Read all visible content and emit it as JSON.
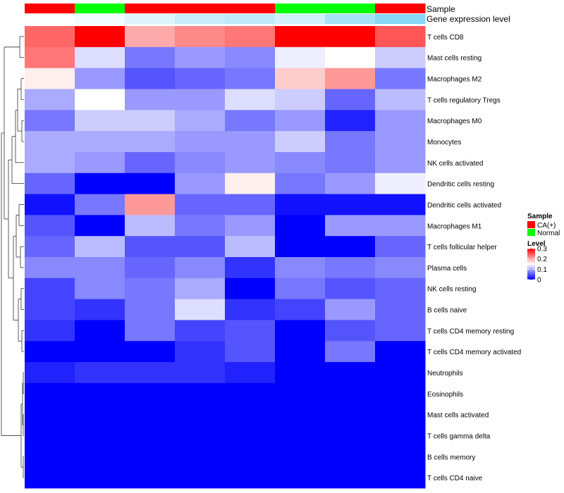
{
  "chart_data": {
    "type": "heatmap",
    "annotation_labels": [
      "Sample",
      "Gene expression level"
    ],
    "sample_groups": [
      "CA(+)",
      "Normal",
      "CA(+)",
      "CA(+)",
      "CA(+)",
      "Normal",
      "Normal",
      "CA(+)"
    ],
    "gene_expression_level": [
      0.98,
      0.92,
      0.8,
      0.66,
      0.6,
      0.72,
      0.45,
      0.25
    ],
    "rows": [
      "T cells CD8",
      "Mast cells resting",
      "Macrophages M2",
      "T cells regulatory  Tregs",
      "Macrophages M0",
      "Monocytes",
      "NK cells activated",
      "Dendritic cells resting",
      "Dendritic cells activated",
      "Macrophages M1",
      "T cells follicular helper",
      "Plasma cells",
      "NK cells resting",
      "B cells naive",
      "T cells CD4 memory resting",
      "T cells CD4 memory activated",
      "Neutrophils",
      "Eosinophils",
      "Mast cells activated",
      "T cells gamma delta",
      "B cells memory",
      "T cells CD4 naive"
    ],
    "values": [
      [
        0.24,
        0.3,
        0.2,
        0.22,
        0.23,
        0.3,
        0.3,
        0.25
      ],
      [
        0.23,
        0.13,
        0.07,
        0.09,
        0.08,
        0.14,
        0.15,
        0.12
      ],
      [
        0.16,
        0.09,
        0.05,
        0.06,
        0.07,
        0.18,
        0.21,
        0.07
      ],
      [
        0.1,
        0.15,
        0.09,
        0.09,
        0.13,
        0.12,
        0.06,
        0.11
      ],
      [
        0.07,
        0.12,
        0.12,
        0.1,
        0.07,
        0.09,
        0.02,
        0.09
      ],
      [
        0.1,
        0.1,
        0.1,
        0.09,
        0.09,
        0.12,
        0.07,
        0.09
      ],
      [
        0.1,
        0.09,
        0.06,
        0.08,
        0.09,
        0.08,
        0.07,
        0.09
      ],
      [
        0.06,
        0.0,
        0.0,
        0.09,
        0.16,
        0.07,
        0.09,
        0.14
      ],
      [
        0.01,
        0.07,
        0.21,
        0.06,
        0.06,
        0.01,
        0.01,
        0.01
      ],
      [
        0.05,
        0.0,
        0.11,
        0.07,
        0.09,
        0.0,
        0.09,
        0.09
      ],
      [
        0.06,
        0.11,
        0.05,
        0.05,
        0.11,
        0.0,
        0.0,
        0.06
      ],
      [
        0.08,
        0.08,
        0.06,
        0.08,
        0.03,
        0.08,
        0.07,
        0.08
      ],
      [
        0.04,
        0.08,
        0.07,
        0.1,
        0.0,
        0.07,
        0.05,
        0.06
      ],
      [
        0.04,
        0.03,
        0.07,
        0.13,
        0.03,
        0.04,
        0.09,
        0.06
      ],
      [
        0.03,
        0.0,
        0.07,
        0.04,
        0.05,
        0.0,
        0.05,
        0.06
      ],
      [
        0.0,
        0.0,
        0.0,
        0.03,
        0.05,
        0.0,
        0.07,
        0.0
      ],
      [
        0.02,
        0.03,
        0.03,
        0.03,
        0.02,
        0.0,
        0.0,
        0.0
      ],
      [
        0.0,
        0.0,
        0.0,
        0.0,
        0.0,
        0.0,
        0.0,
        0.0
      ],
      [
        0.0,
        0.0,
        0.0,
        0.0,
        0.0,
        0.0,
        0.0,
        0.0
      ],
      [
        0.0,
        0.0,
        0.0,
        0.0,
        0.0,
        0.0,
        0.0,
        0.0
      ],
      [
        0.0,
        0.0,
        0.0,
        0.0,
        0.0,
        0.0,
        0.0,
        0.0
      ],
      [
        0.0,
        0.0,
        0.0,
        0.0,
        0.0,
        0.0,
        0.0,
        0.0
      ]
    ],
    "color_scale": {
      "low": "#0000FF",
      "mid": "#FFFFFF",
      "high": "#FF0000",
      "min": 0,
      "mid_value": 0.15,
      "max": 0.3
    },
    "legend": {
      "sample_title": "Sample",
      "sample_entries": [
        {
          "label": "CA(+)",
          "color": "#FF0000"
        },
        {
          "label": "Normal",
          "color": "#00FF00"
        }
      ],
      "level_title": "Level",
      "level_ticks": [
        "0.3",
        "0.2",
        "0.1",
        "0"
      ],
      "level_tick_values": [
        0.3,
        0.2,
        0.1,
        0
      ]
    },
    "gene_expression_colors": {
      "low": "#5BC8F0",
      "high": "#FFFFFF"
    }
  }
}
